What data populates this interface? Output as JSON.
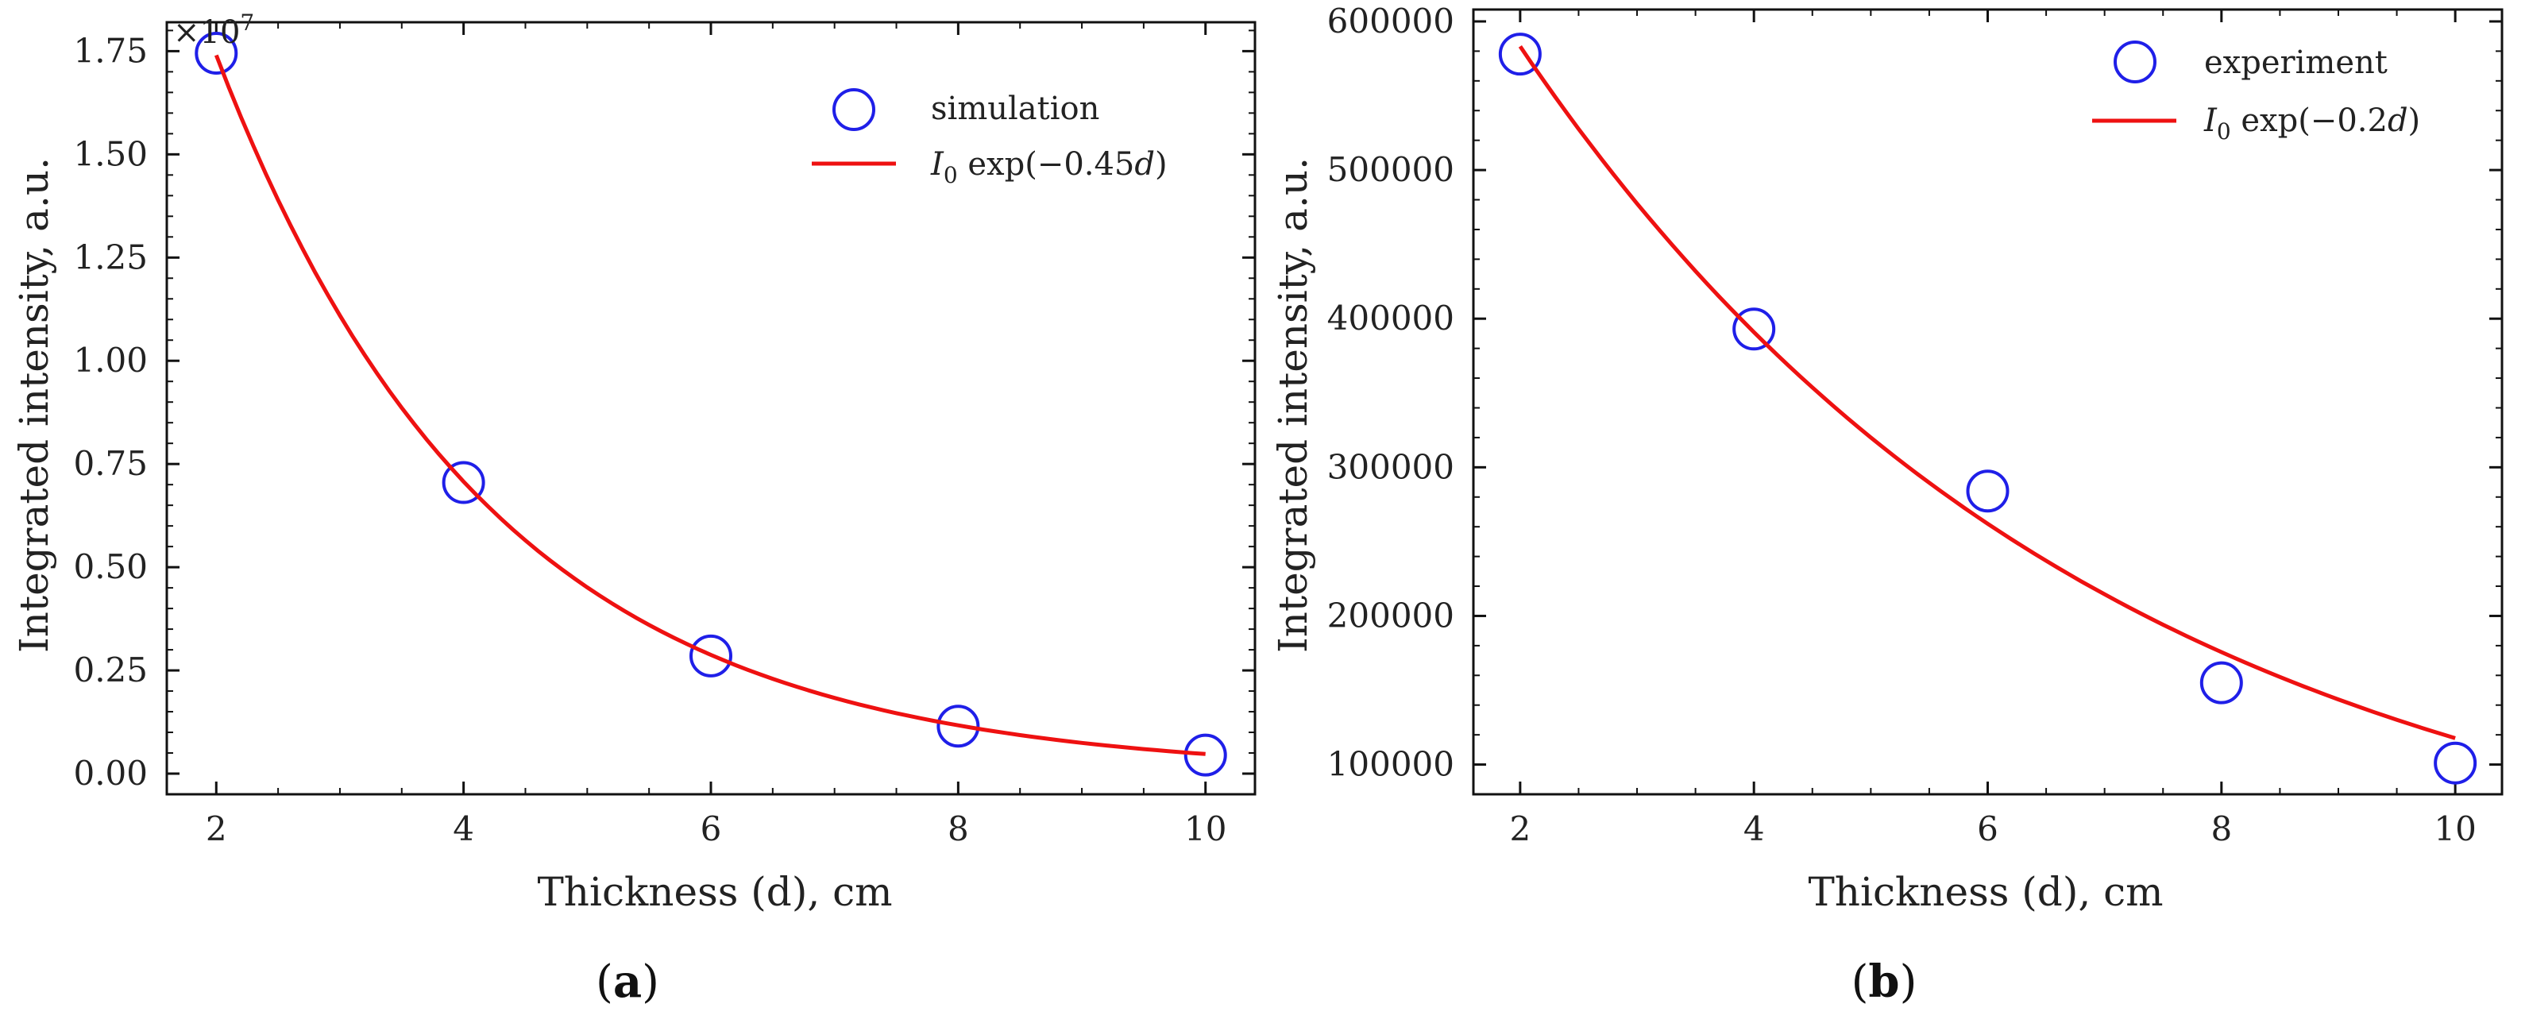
{
  "chart_data": [
    {
      "type": "scatter",
      "panel_label": "(a)",
      "panel_letter": "a",
      "xlabel": "Thickness (d), cm",
      "ylabel": "Integrated intensity, a.u.",
      "y_offset_label": "×10",
      "y_offset_exp": "7",
      "xlim": [
        1.6,
        10.4
      ],
      "ylim": [
        -0.05,
        1.82
      ],
      "xticks": [
        2,
        4,
        6,
        8,
        10
      ],
      "xtick_labels": [
        "2",
        "4",
        "6",
        "8",
        "10"
      ],
      "yticks": [
        0.0,
        0.25,
        0.5,
        0.75,
        1.0,
        1.25,
        1.5,
        1.75
      ],
      "ytick_labels": [
        "0.00",
        "0.25",
        "0.50",
        "0.75",
        "1.00",
        "1.25",
        "1.50",
        "1.75"
      ],
      "grid": false,
      "legend_position": "top-right",
      "series": [
        {
          "name": "simulation",
          "kind": "markers",
          "color": "#1f1fe8",
          "x": [
            2,
            4,
            6,
            8,
            10
          ],
          "y": [
            1.745,
            0.705,
            0.285,
            0.115,
            0.045
          ]
        },
        {
          "name": "I_0 exp(−0.45d)",
          "kind": "line",
          "color": "#ee1111",
          "I0": 4.28,
          "k": 0.45,
          "x_range": [
            2,
            10
          ]
        }
      ],
      "legend": {
        "marker_label": "simulation",
        "line_label_prefix": "I",
        "line_label_sub": "0",
        "line_label_body": " exp(−0.45",
        "line_label_var": "d",
        "line_label_close": ")"
      }
    },
    {
      "type": "scatter",
      "panel_label": "(b)",
      "panel_letter": "b",
      "xlabel": "Thickness (d), cm",
      "ylabel": "Integrated intensity, a.u.",
      "xlim": [
        1.6,
        10.4
      ],
      "ylim": [
        80000,
        608000
      ],
      "xticks": [
        2,
        4,
        6,
        8,
        10
      ],
      "xtick_labels": [
        "2",
        "4",
        "6",
        "8",
        "10"
      ],
      "yticks": [
        100000,
        200000,
        300000,
        400000,
        500000,
        600000
      ],
      "ytick_labels": [
        "100000",
        "200000",
        "300000",
        "400000",
        "500000",
        "600000"
      ],
      "grid": false,
      "legend_position": "top-right",
      "series": [
        {
          "name": "experiment",
          "kind": "markers",
          "color": "#1f1fe8",
          "x": [
            2,
            4,
            6,
            8,
            10
          ],
          "y": [
            578000,
            393000,
            284000,
            155000,
            101000
          ]
        },
        {
          "name": "I_0 exp(−0.2d)",
          "kind": "line",
          "color": "#ee1111",
          "I0": 870000,
          "k": 0.2,
          "x_range": [
            2,
            10
          ]
        }
      ],
      "legend": {
        "marker_label": "experiment",
        "line_label_prefix": "I",
        "line_label_sub": "0",
        "line_label_body": " exp(−0.2",
        "line_label_var": "d",
        "line_label_close": ")"
      }
    }
  ]
}
